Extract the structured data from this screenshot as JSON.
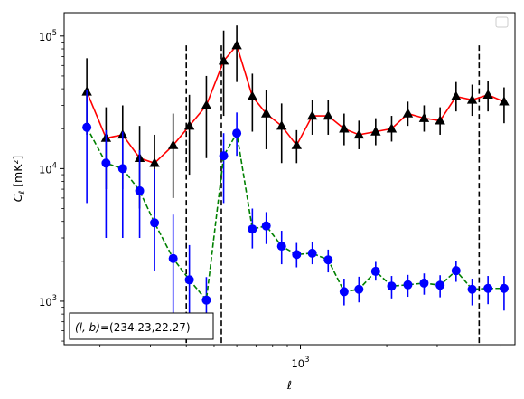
{
  "chart_data": {
    "type": "line",
    "xscale": "log",
    "yscale": "log",
    "xlabel": "ℓ",
    "ylabel": "C_ℓ [mK²]",
    "xlim": [
      150,
      5600
    ],
    "ylim": [
      470,
      150000
    ],
    "x_ticks": [
      {
        "value": 1000,
        "mantissa": "10",
        "exponent": "3"
      }
    ],
    "y_ticks": [
      {
        "value": 1000,
        "mantissa": "10",
        "exponent": "3"
      },
      {
        "value": 10000,
        "mantissa": "10",
        "exponent": "4"
      },
      {
        "value": 100000,
        "mantissa": "10",
        "exponent": "5"
      }
    ],
    "vlines": [
      400,
      530,
      4200
    ],
    "annotation": {
      "prefix": "(l, b)",
      "value": "=(234.23,22.27)"
    },
    "legend": {
      "position": "top-right",
      "entries": []
    },
    "series": [
      {
        "color": "#ff0000",
        "errorbar_color": "#000000",
        "marker": "triangle",
        "line_style": "solid",
        "x": [
          180,
          210,
          240,
          275,
          310,
          360,
          410,
          470,
          540,
          600,
          680,
          760,
          860,
          970,
          1100,
          1250,
          1420,
          1600,
          1830,
          2080,
          2370,
          2700,
          3070,
          3490,
          3970,
          4510,
          5130
        ],
        "y": [
          38000,
          17000,
          18000,
          12000,
          11000,
          15000,
          21000,
          30000,
          65000,
          85000,
          35000,
          26000,
          21000,
          15000,
          25000,
          25000,
          20000,
          18000,
          19000,
          20000,
          26000,
          24000,
          23000,
          35000,
          33000,
          36000,
          32000
        ],
        "yerr_low": [
          20000,
          10000,
          11000,
          7000,
          6500,
          9000,
          12000,
          18000,
          40000,
          40000,
          16000,
          12000,
          10000,
          4000,
          7000,
          7000,
          5000,
          4000,
          4000,
          4000,
          5000,
          5000,
          5000,
          8000,
          8000,
          9000,
          10000
        ],
        "yerr_high": [
          30000,
          12000,
          12000,
          9000,
          7000,
          11000,
          15000,
          20000,
          45000,
          35000,
          17000,
          13000,
          10000,
          4500,
          8000,
          8000,
          6000,
          5000,
          5000,
          5000,
          6000,
          6000,
          6000,
          10000,
          10000,
          10000,
          9000
        ]
      },
      {
        "color": "#008000",
        "errorbar_color": "#0000ff",
        "marker": "circle",
        "line_style": "dashed",
        "x": [
          180,
          210,
          240,
          275,
          310,
          360,
          410,
          470,
          540,
          600,
          680,
          760,
          860,
          970,
          1100,
          1250,
          1420,
          1600,
          1830,
          2080,
          2370,
          2700,
          3070,
          3490,
          3970,
          4510,
          5130
        ],
        "y": [
          20500,
          11000,
          10000,
          6800,
          3900,
          2100,
          1450,
          1020,
          12500,
          18500,
          3500,
          3700,
          2600,
          2250,
          2300,
          2050,
          1180,
          1230,
          1680,
          1300,
          1330,
          1370,
          1320,
          1700,
          1230,
          1250,
          1250
        ],
        "yerr_low": [
          15000,
          8000,
          7000,
          3800,
          2200,
          1300,
          750,
          500,
          7000,
          6000,
          1000,
          1000,
          700,
          450,
          400,
          400,
          250,
          250,
          250,
          250,
          250,
          250,
          250,
          300,
          300,
          300,
          400
        ],
        "yerr_high": [
          19000,
          8500,
          9000,
          7000,
          6000,
          2400,
          1200,
          500,
          6000,
          8000,
          1500,
          1000,
          800,
          500,
          500,
          400,
          300,
          300,
          300,
          250,
          250,
          250,
          250,
          300,
          250,
          300,
          300
        ]
      }
    ]
  }
}
